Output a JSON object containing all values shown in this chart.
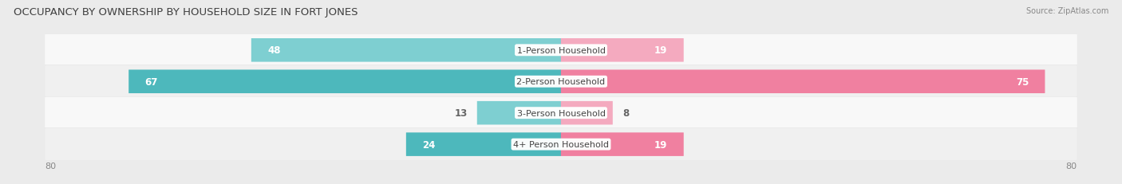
{
  "title": "OCCUPANCY BY OWNERSHIP BY HOUSEHOLD SIZE IN FORT JONES",
  "source": "Source: ZipAtlas.com",
  "categories": [
    "1-Person Household",
    "2-Person Household",
    "3-Person Household",
    "4+ Person Household"
  ],
  "owner_values": [
    48,
    67,
    13,
    24
  ],
  "renter_values": [
    19,
    75,
    8,
    19
  ],
  "max_val": 80,
  "owner_color": "#4DB8BC",
  "renter_color": "#F080A0",
  "owner_color_light": "#7ECFD1",
  "renter_color_light": "#F4AABF",
  "bg_color": "#EBEBEB",
  "row_colors": [
    "#F8F8F8",
    "#F0F0F0",
    "#F8F8F8",
    "#F0F0F0"
  ],
  "title_fontsize": 9.5,
  "value_fontsize": 8.5,
  "cat_fontsize": 8,
  "legend_fontsize": 8,
  "axis_fontsize": 8
}
